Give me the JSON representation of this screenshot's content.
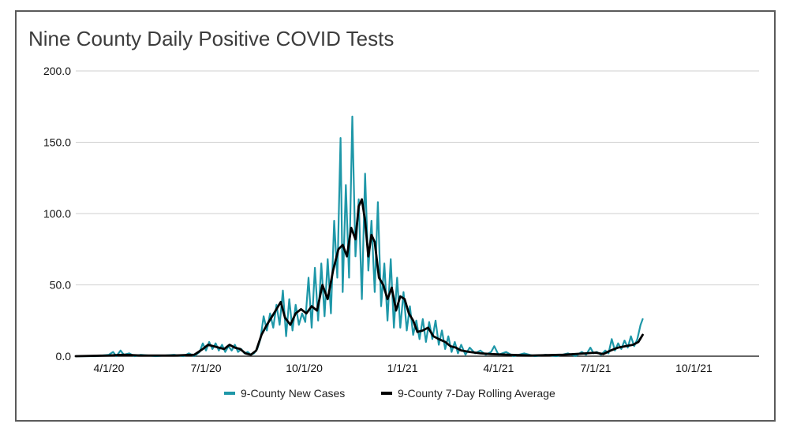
{
  "chart_data": {
    "type": "line",
    "title": "Nine County Daily Positive COVID Tests",
    "xlabel": "",
    "ylabel": "",
    "x_range": [
      "2020-03-01",
      "2021-12-01"
    ],
    "x_tick_labels": [
      "4/1/20",
      "7/1/20",
      "10/1/20",
      "1/1/21",
      "4/1/21",
      "7/1/21",
      "10/1/21"
    ],
    "x_tick_dates": [
      "2020-04-01",
      "2020-07-01",
      "2020-10-01",
      "2021-01-01",
      "2021-04-01",
      "2021-07-01",
      "2021-10-01"
    ],
    "ylim": [
      0,
      200
    ],
    "y_ticks": [
      0,
      50,
      100,
      150,
      200
    ],
    "y_tick_labels": [
      "0.0",
      "50.0",
      "100.0",
      "150.0",
      "200.0"
    ],
    "grid": "horizontal",
    "legend": "bottom",
    "series": [
      {
        "name": "9-County New Cases",
        "color": "#1e97a8",
        "points": [
          [
            "2020-03-01",
            0
          ],
          [
            "2020-03-20",
            0
          ],
          [
            "2020-04-01",
            1
          ],
          [
            "2020-04-05",
            3
          ],
          [
            "2020-04-08",
            0
          ],
          [
            "2020-04-12",
            4
          ],
          [
            "2020-04-15",
            1
          ],
          [
            "2020-04-20",
            2
          ],
          [
            "2020-04-25",
            0
          ],
          [
            "2020-05-01",
            1
          ],
          [
            "2020-05-15",
            0
          ],
          [
            "2020-06-01",
            1
          ],
          [
            "2020-06-10",
            0
          ],
          [
            "2020-06-15",
            2
          ],
          [
            "2020-06-20",
            0
          ],
          [
            "2020-06-25",
            3
          ],
          [
            "2020-06-28",
            9
          ],
          [
            "2020-07-01",
            4
          ],
          [
            "2020-07-04",
            10
          ],
          [
            "2020-07-07",
            5
          ],
          [
            "2020-07-10",
            9
          ],
          [
            "2020-07-13",
            4
          ],
          [
            "2020-07-16",
            8
          ],
          [
            "2020-07-19",
            3
          ],
          [
            "2020-07-22",
            7
          ],
          [
            "2020-07-25",
            4
          ],
          [
            "2020-07-28",
            8
          ],
          [
            "2020-07-31",
            3
          ],
          [
            "2020-08-03",
            5
          ],
          [
            "2020-08-06",
            2
          ],
          [
            "2020-08-09",
            3
          ],
          [
            "2020-08-12",
            1
          ],
          [
            "2020-08-15",
            2
          ],
          [
            "2020-08-18",
            5
          ],
          [
            "2020-08-21",
            12
          ],
          [
            "2020-08-24",
            28
          ],
          [
            "2020-08-27",
            18
          ],
          [
            "2020-08-30",
            30
          ],
          [
            "2020-09-02",
            20
          ],
          [
            "2020-09-05",
            36
          ],
          [
            "2020-09-08",
            22
          ],
          [
            "2020-09-11",
            46
          ],
          [
            "2020-09-14",
            14
          ],
          [
            "2020-09-17",
            40
          ],
          [
            "2020-09-20",
            18
          ],
          [
            "2020-09-23",
            36
          ],
          [
            "2020-09-26",
            22
          ],
          [
            "2020-09-29",
            30
          ],
          [
            "2020-10-02",
            24
          ],
          [
            "2020-10-05",
            55
          ],
          [
            "2020-10-08",
            20
          ],
          [
            "2020-10-11",
            62
          ],
          [
            "2020-10-14",
            25
          ],
          [
            "2020-10-17",
            65
          ],
          [
            "2020-10-20",
            28
          ],
          [
            "2020-10-23",
            68
          ],
          [
            "2020-10-26",
            30
          ],
          [
            "2020-10-29",
            95
          ],
          [
            "2020-11-01",
            55
          ],
          [
            "2020-11-04",
            153
          ],
          [
            "2020-11-06",
            45
          ],
          [
            "2020-11-09",
            120
          ],
          [
            "2020-11-12",
            55
          ],
          [
            "2020-11-15",
            168
          ],
          [
            "2020-11-18",
            70
          ],
          [
            "2020-11-21",
            110
          ],
          [
            "2020-11-24",
            40
          ],
          [
            "2020-11-27",
            128
          ],
          [
            "2020-11-30",
            60
          ],
          [
            "2020-12-03",
            95
          ],
          [
            "2020-12-06",
            45
          ],
          [
            "2020-12-09",
            108
          ],
          [
            "2020-12-12",
            35
          ],
          [
            "2020-12-15",
            65
          ],
          [
            "2020-12-18",
            25
          ],
          [
            "2020-12-21",
            68
          ],
          [
            "2020-12-24",
            20
          ],
          [
            "2020-12-27",
            55
          ],
          [
            "2020-12-30",
            20
          ],
          [
            "2021-01-02",
            45
          ],
          [
            "2021-01-05",
            18
          ],
          [
            "2021-01-08",
            35
          ],
          [
            "2021-01-11",
            15
          ],
          [
            "2021-01-14",
            25
          ],
          [
            "2021-01-17",
            12
          ],
          [
            "2021-01-20",
            26
          ],
          [
            "2021-01-23",
            10
          ],
          [
            "2021-01-26",
            24
          ],
          [
            "2021-01-29",
            12
          ],
          [
            "2021-02-01",
            25
          ],
          [
            "2021-02-04",
            8
          ],
          [
            "2021-02-07",
            18
          ],
          [
            "2021-02-10",
            5
          ],
          [
            "2021-02-13",
            14
          ],
          [
            "2021-02-16",
            3
          ],
          [
            "2021-02-19",
            10
          ],
          [
            "2021-02-22",
            2
          ],
          [
            "2021-02-25",
            8
          ],
          [
            "2021-03-01",
            1
          ],
          [
            "2021-03-05",
            6
          ],
          [
            "2021-03-10",
            2
          ],
          [
            "2021-03-15",
            4
          ],
          [
            "2021-03-20",
            1
          ],
          [
            "2021-03-25",
            3
          ],
          [
            "2021-03-28",
            7
          ],
          [
            "2021-04-01",
            1
          ],
          [
            "2021-04-08",
            3
          ],
          [
            "2021-04-15",
            0
          ],
          [
            "2021-04-25",
            2
          ],
          [
            "2021-05-05",
            0
          ],
          [
            "2021-05-15",
            1
          ],
          [
            "2021-05-25",
            0
          ],
          [
            "2021-06-05",
            2
          ],
          [
            "2021-06-12",
            0
          ],
          [
            "2021-06-18",
            3
          ],
          [
            "2021-06-22",
            1
          ],
          [
            "2021-06-26",
            6
          ],
          [
            "2021-06-29",
            2
          ],
          [
            "2021-07-02",
            3
          ],
          [
            "2021-07-06",
            1
          ],
          [
            "2021-07-10",
            4
          ],
          [
            "2021-07-13",
            2
          ],
          [
            "2021-07-16",
            12
          ],
          [
            "2021-07-19",
            4
          ],
          [
            "2021-07-22",
            9
          ],
          [
            "2021-07-25",
            5
          ],
          [
            "2021-07-28",
            11
          ],
          [
            "2021-07-31",
            6
          ],
          [
            "2021-08-03",
            14
          ],
          [
            "2021-08-06",
            7
          ],
          [
            "2021-08-09",
            12
          ],
          [
            "2021-08-12",
            22
          ],
          [
            "2021-08-14",
            26
          ]
        ]
      },
      {
        "name": "9-County 7-Day Rolling Average",
        "color": "#000000",
        "points": [
          [
            "2020-03-01",
            0
          ],
          [
            "2020-04-01",
            0.5
          ],
          [
            "2020-04-15",
            1
          ],
          [
            "2020-05-01",
            0.5
          ],
          [
            "2020-06-01",
            0.5
          ],
          [
            "2020-06-20",
            1
          ],
          [
            "2020-06-28",
            5
          ],
          [
            "2020-07-03",
            8
          ],
          [
            "2020-07-08",
            7
          ],
          [
            "2020-07-13",
            6
          ],
          [
            "2020-07-18",
            5
          ],
          [
            "2020-07-23",
            8
          ],
          [
            "2020-07-28",
            6
          ],
          [
            "2020-08-02",
            5
          ],
          [
            "2020-08-07",
            2
          ],
          [
            "2020-08-12",
            1
          ],
          [
            "2020-08-17",
            4
          ],
          [
            "2020-08-22",
            15
          ],
          [
            "2020-08-27",
            22
          ],
          [
            "2020-09-01",
            28
          ],
          [
            "2020-09-05",
            33
          ],
          [
            "2020-09-09",
            38
          ],
          [
            "2020-09-13",
            27
          ],
          [
            "2020-09-18",
            22
          ],
          [
            "2020-09-23",
            30
          ],
          [
            "2020-09-28",
            33
          ],
          [
            "2020-10-03",
            30
          ],
          [
            "2020-10-08",
            35
          ],
          [
            "2020-10-13",
            32
          ],
          [
            "2020-10-18",
            50
          ],
          [
            "2020-10-23",
            40
          ],
          [
            "2020-10-28",
            60
          ],
          [
            "2020-11-02",
            75
          ],
          [
            "2020-11-06",
            78
          ],
          [
            "2020-11-10",
            70
          ],
          [
            "2020-11-14",
            90
          ],
          [
            "2020-11-18",
            82
          ],
          [
            "2020-11-21",
            105
          ],
          [
            "2020-11-24",
            110
          ],
          [
            "2020-11-27",
            95
          ],
          [
            "2020-11-30",
            70
          ],
          [
            "2020-12-03",
            85
          ],
          [
            "2020-12-06",
            80
          ],
          [
            "2020-12-10",
            55
          ],
          [
            "2020-12-14",
            50
          ],
          [
            "2020-12-18",
            40
          ],
          [
            "2020-12-22",
            48
          ],
          [
            "2020-12-26",
            32
          ],
          [
            "2020-12-30",
            42
          ],
          [
            "2021-01-03",
            40
          ],
          [
            "2021-01-07",
            30
          ],
          [
            "2021-01-11",
            25
          ],
          [
            "2021-01-15",
            17
          ],
          [
            "2021-01-20",
            18
          ],
          [
            "2021-01-25",
            20
          ],
          [
            "2021-01-30",
            14
          ],
          [
            "2021-02-04",
            12
          ],
          [
            "2021-02-10",
            10
          ],
          [
            "2021-02-15",
            7
          ],
          [
            "2021-02-20",
            6
          ],
          [
            "2021-02-25",
            4
          ],
          [
            "2021-03-05",
            3
          ],
          [
            "2021-03-15",
            2
          ],
          [
            "2021-03-25",
            1.5
          ],
          [
            "2021-04-10",
            1
          ],
          [
            "2021-05-01",
            0.5
          ],
          [
            "2021-06-01",
            1
          ],
          [
            "2021-06-22",
            2
          ],
          [
            "2021-07-01",
            2.5
          ],
          [
            "2021-07-08",
            1.5
          ],
          [
            "2021-07-15",
            4
          ],
          [
            "2021-07-22",
            6
          ],
          [
            "2021-07-29",
            7
          ],
          [
            "2021-08-05",
            8
          ],
          [
            "2021-08-10",
            10
          ],
          [
            "2021-08-14",
            15
          ]
        ]
      }
    ]
  }
}
